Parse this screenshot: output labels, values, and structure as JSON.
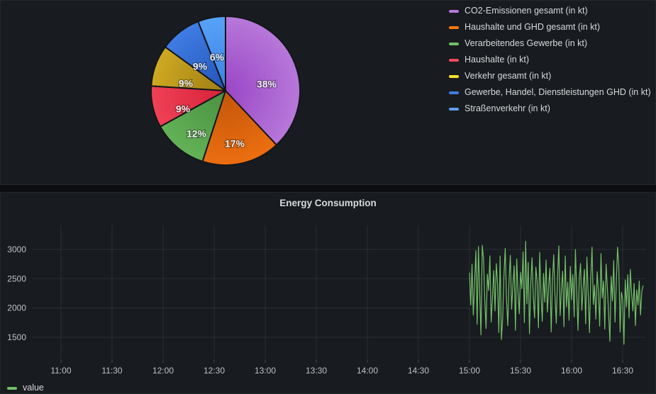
{
  "colors": {
    "page_bg": "#0c0d10",
    "panel_bg": "#181b1f",
    "grid": "rgba(204,204,220,0.10)",
    "axis_text": "#bfc1c7",
    "title_text": "#d8d9da",
    "series_green": "#73BF69"
  },
  "ts_panel": {
    "title": "Energy Consumption"
  },
  "chart_data": [
    {
      "type": "pie",
      "legend_position": "right",
      "slices": [
        {
          "label": "CO2-Emissionen gesamt (in kt)",
          "percent": 38,
          "pct_label": "38%",
          "legend_color": "#B877D9",
          "inner_color": "#9a46c5",
          "outer_color": "#b778da"
        },
        {
          "label": "Haushalte und GHD gesamt (in kt)",
          "percent": 17,
          "pct_label": "17%",
          "legend_color": "#FF780A",
          "inner_color": "#c2560a",
          "outer_color": "#ec6e10"
        },
        {
          "label": "Verarbeitendes Gewerbe (in kt)",
          "percent": 12,
          "pct_label": "12%",
          "legend_color": "#73BF69",
          "inner_color": "#498f40",
          "outer_color": "#63b257"
        },
        {
          "label": "Haushalte (in kt)",
          "percent": 9,
          "pct_label": "9%",
          "legend_color": "#F2495C",
          "inner_color": "#d62139",
          "outer_color": "#ef4156"
        },
        {
          "label": "Verkehr gesamt (in kt)",
          "percent": 9,
          "pct_label": "9%",
          "legend_color": "#FADE2A",
          "inner_color": "#9c7e14",
          "outer_color": "#cfa922"
        },
        {
          "label": "Gewerbe, Handel, Dienstleistungen GHD (in kt)",
          "percent": 9,
          "pct_label": "9%",
          "legend_color": "#3E7DE0",
          "inner_color": "#2453b6",
          "outer_color": "#3f7de4"
        },
        {
          "label": "Straßenverkehr (in kt)",
          "percent": 6,
          "pct_label": "6%",
          "legend_color": "#5E9BF0",
          "inner_color": "#3c80e2",
          "outer_color": "#57a2f8"
        }
      ]
    },
    {
      "type": "line",
      "title": "Energy Consumption",
      "x_ticks": [
        "11:00",
        "11:30",
        "12:00",
        "12:30",
        "13:00",
        "13:30",
        "14:00",
        "14:30",
        "15:00",
        "15:30",
        "16:00",
        "16:30"
      ],
      "y_ticks": [
        3000,
        2500,
        2000,
        1500
      ],
      "grid": true,
      "legend_position": "bottom-left",
      "series": [
        {
          "name": "value",
          "color": "#73BF69",
          "start_time": "15:00",
          "interval_seconds": 45,
          "values": [
            2600,
            2050,
            2750,
            1880,
            2420,
            2980,
            1720,
            3050,
            2260,
            1540,
            3070,
            2840,
            2120,
            1650,
            2580,
            2300,
            2890,
            1760,
            2180,
            2640,
            1950,
            2760,
            2430,
            1580,
            2890,
            1460,
            1820,
            2560,
            3020,
            2150,
            1700,
            2470,
            2900,
            1980,
            2380,
            2720,
            1620,
            2840,
            2290,
            1900,
            2610,
            2330,
            2960,
            1750,
            3140,
            2070,
            2780,
            1560,
            2400,
            2860,
            2180,
            1830,
            2700,
            2450,
            1660,
            2950,
            2240,
            1770,
            2590,
            2100,
            2820,
            1930,
            2360,
            2680,
            1590,
            2470,
            2910,
            2200,
            1740,
            2550,
            3060,
            1870,
            2310,
            2630,
            1680,
            2890,
            2020,
            2440,
            1790,
            2710,
            2140,
            2570,
            1850,
            3000,
            2280,
            1620,
            2490,
            2760,
            1960,
            2340,
            2660,
            1730,
            2870,
            2230,
            1580,
            2510,
            3040,
            2060,
            2390,
            1810,
            2620,
            2280,
            1690,
            2930,
            2170,
            2460,
            1640,
            2750,
            2350,
            1900,
            1430,
            2540,
            2120,
            2810,
            1760,
            2430,
            3040,
            2690,
            1590,
            2270,
            2150,
            1380,
            2480,
            2020,
            2570,
            1830,
            2660,
            2240,
            1950,
            2420,
            1700,
            2310,
            2050,
            2460,
            1880,
            2280,
            2380
          ]
        }
      ]
    }
  ]
}
